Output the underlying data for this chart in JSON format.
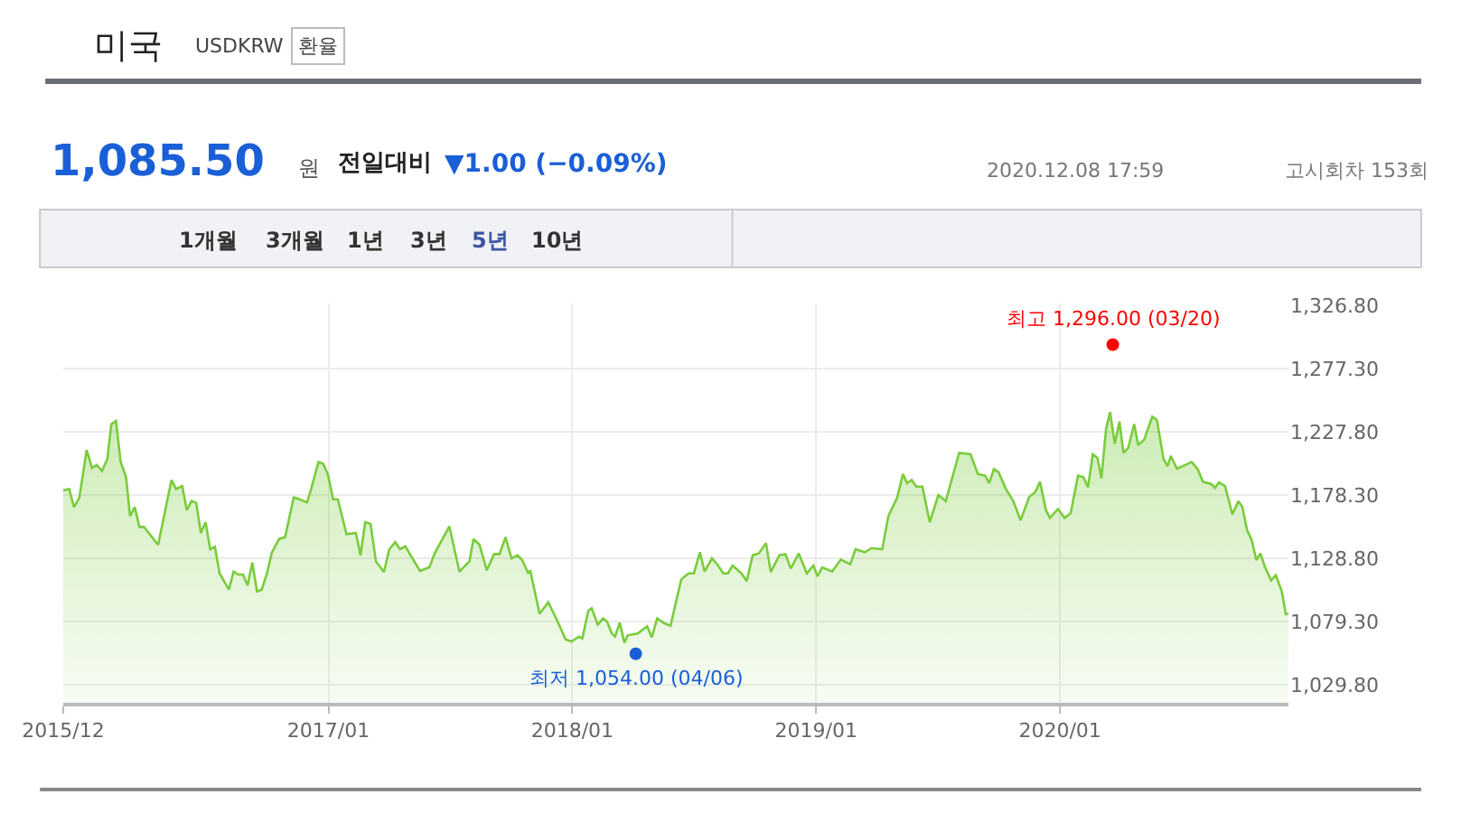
{
  "chart_data": {
    "type": "area",
    "title": "미국",
    "subtitle": "USDKRW",
    "annotations": [
      "환율",
      "1,085.50",
      "원",
      "전일대비",
      "▼1.00 (−0.09%)",
      "2020.12.08 17:59",
      "고시회차 153회",
      "1개월",
      "3개월",
      "1년",
      "3년",
      "5년",
      "10년",
      {
        "text": "최고 1,296.00 (03/20)",
        "x": "2020-03-20",
        "y": 1296
      },
      {
        "text": "최저 1,054.00 (04/06)",
        "x": "2018-04-06",
        "y": 1054
      }
    ],
    "xlim": [
      "2015-12-01",
      "2020-12-08"
    ],
    "xticks": [
      {
        "value": "2015-12-01",
        "label": "2015/12"
      },
      {
        "value": "2017-01-01",
        "label": "2017/01"
      },
      {
        "value": "2018-01-01",
        "label": "2018/01"
      },
      {
        "value": "2019-01-01",
        "label": "2019/01"
      },
      {
        "value": "2020-01-01",
        "label": "2020/01"
      }
    ],
    "ylim": [
      1015.7,
      1328.2
    ],
    "yticks": [
      {
        "value": 1029.8,
        "label": "1,029.80"
      },
      {
        "value": 1079.3,
        "label": "1,079.30"
      },
      {
        "value": 1128.8,
        "label": "1,128.80"
      },
      {
        "value": 1178.3,
        "label": "1,178.30"
      },
      {
        "value": 1227.8,
        "label": "1,227.80"
      },
      {
        "value": 1277.3,
        "label": "1,277.30"
      },
      {
        "value": 1326.8,
        "label": "1,326.80"
      }
    ],
    "grid": true,
    "legend": false,
    "series": [
      {
        "color": "#7acc3c",
        "x": [
          "2015-12-01",
          "2015-12-10",
          "2015-12-17",
          "2015-12-25",
          "2016-01-05",
          "2016-01-13",
          "2016-01-20",
          "2016-01-28",
          "2016-02-05",
          "2016-02-11",
          "2016-02-18",
          "2016-02-25",
          "2016-03-04",
          "2016-03-10",
          "2016-03-17",
          "2016-03-24",
          "2016-03-31",
          "2016-04-21",
          "2016-05-11",
          "2016-05-18",
          "2016-05-27",
          "2016-06-03",
          "2016-06-10",
          "2016-06-17",
          "2016-06-24",
          "2016-07-01",
          "2016-07-08",
          "2016-07-15",
          "2016-07-22",
          "2016-08-05",
          "2016-08-12",
          "2016-08-19",
          "2016-08-26",
          "2016-09-02",
          "2016-09-09",
          "2016-09-16",
          "2016-09-23",
          "2016-10-01",
          "2016-10-08",
          "2016-10-19",
          "2016-10-28",
          "2016-11-10",
          "2016-11-19",
          "2016-11-30",
          "2016-12-06",
          "2016-12-17",
          "2016-12-24",
          "2016-12-31",
          "2017-01-08",
          "2017-01-15",
          "2017-01-28",
          "2017-02-11",
          "2017-02-18",
          "2017-02-25",
          "2017-03-05",
          "2017-03-13",
          "2017-03-25",
          "2017-04-02",
          "2017-04-11",
          "2017-04-18",
          "2017-04-26",
          "2017-05-18",
          "2017-06-01",
          "2017-06-09",
          "2017-07-01",
          "2017-07-16",
          "2017-07-31",
          "2017-08-06",
          "2017-08-15",
          "2017-08-26",
          "2017-09-06",
          "2017-09-14",
          "2017-09-23",
          "2017-10-02",
          "2017-10-11",
          "2017-10-18",
          "2017-10-27",
          "2017-10-30",
          "2017-11-13",
          "2017-11-26",
          "2017-12-10",
          "2017-12-22",
          "2017-12-31",
          "2018-01-11",
          "2018-01-16",
          "2018-01-25",
          "2018-01-30",
          "2018-02-08",
          "2018-02-16",
          "2018-02-22",
          "2018-03-01",
          "2018-03-06",
          "2018-03-13",
          "2018-03-20",
          "2018-03-25",
          "2018-04-09",
          "2018-04-23",
          "2018-04-30",
          "2018-05-08",
          "2018-05-19",
          "2018-05-28",
          "2018-06-13",
          "2018-06-24",
          "2018-07-02",
          "2018-07-11",
          "2018-07-18",
          "2018-07-29",
          "2018-08-06",
          "2018-08-15",
          "2018-08-22",
          "2018-08-29",
          "2018-09-11",
          "2018-09-19",
          "2018-09-28",
          "2018-10-07",
          "2018-10-18",
          "2018-10-25",
          "2018-11-07",
          "2018-11-16",
          "2018-11-24",
          "2018-12-06",
          "2018-12-18",
          "2018-12-28",
          "2019-01-03",
          "2019-01-10",
          "2019-01-25",
          "2019-02-07",
          "2019-02-21",
          "2019-03-01",
          "2019-03-15",
          "2019-03-25",
          "2019-04-10",
          "2019-04-19",
          "2019-05-02",
          "2019-05-11",
          "2019-05-17",
          "2019-05-24",
          "2019-05-31",
          "2019-06-09",
          "2019-06-20",
          "2019-07-03",
          "2019-07-14",
          "2019-08-03",
          "2019-08-20",
          "2019-08-31",
          "2019-09-11",
          "2019-09-17",
          "2019-09-24",
          "2019-10-01",
          "2019-10-12",
          "2019-10-23",
          "2019-11-03",
          "2019-11-16",
          "2019-11-25",
          "2019-12-02",
          "2019-12-11",
          "2019-12-17",
          "2019-12-29",
          "2020-01-08",
          "2020-01-17",
          "2020-01-28",
          "2020-02-05",
          "2020-02-12",
          "2020-02-19",
          "2020-02-26",
          "2020-03-03",
          "2020-03-10",
          "2020-03-16",
          "2020-03-23",
          "2020-03-30",
          "2020-04-05",
          "2020-04-12",
          "2020-04-21",
          "2020-04-27",
          "2020-05-06",
          "2020-05-18",
          "2020-05-25",
          "2020-06-04",
          "2020-06-10",
          "2020-06-15",
          "2020-06-24",
          "2020-07-07",
          "2020-07-16",
          "2020-07-25",
          "2020-08-02",
          "2020-08-15",
          "2020-08-20",
          "2020-08-26",
          "2020-09-04",
          "2020-09-15",
          "2020-09-24",
          "2020-09-30",
          "2020-10-07",
          "2020-10-14",
          "2020-10-21",
          "2020-10-27",
          "2020-11-03",
          "2020-11-12",
          "2020-11-19",
          "2020-11-28",
          "2020-12-04",
          "2020-12-08"
        ],
        "values": [
          1182.1,
          1183.0,
          1168.9,
          1175.9,
          1213.6,
          1199.5,
          1201.9,
          1197.1,
          1206.6,
          1233.9,
          1236.3,
          1204.2,
          1192.4,
          1161.8,
          1168.9,
          1153.3,
          1153.3,
          1139.2,
          1190.1,
          1183.0,
          1185.4,
          1166.5,
          1173.6,
          1172.2,
          1148.6,
          1157.1,
          1135.9,
          1137.8,
          1117.0,
          1104.3,
          1118.4,
          1116.1,
          1116.1,
          1107.6,
          1125.5,
          1102.9,
          1104.3,
          1117.0,
          1133.0,
          1143.9,
          1145.3,
          1176.4,
          1175.0,
          1172.6,
          1183.0,
          1204.2,
          1202.8,
          1194.8,
          1175.0,
          1175.0,
          1147.7,
          1148.6,
          1131.2,
          1157.1,
          1155.7,
          1126.4,
          1118.0,
          1135.9,
          1141.5,
          1135.9,
          1138.2,
          1118.9,
          1121.7,
          1132.6,
          1153.8,
          1118.4,
          1126.4,
          1143.9,
          1139.6,
          1119.4,
          1132.1,
          1132.1,
          1145.3,
          1128.8,
          1131.2,
          1127.4,
          1117.0,
          1119.4,
          1085.4,
          1094.4,
          1079.3,
          1065.2,
          1063.7,
          1067.5,
          1066.1,
          1087.8,
          1089.7,
          1076.9,
          1081.7,
          1079.3,
          1069.9,
          1067.5,
          1078.4,
          1062.8,
          1068.5,
          1069.9,
          1075.5,
          1067.0,
          1081.7,
          1077.9,
          1076.0,
          1112.3,
          1117.0,
          1117.0,
          1133.5,
          1118.4,
          1128.8,
          1124.1,
          1117.0,
          1117.0,
          1123.1,
          1117.0,
          1110.9,
          1131.2,
          1132.6,
          1140.6,
          1118.0,
          1131.2,
          1132.1,
          1120.8,
          1132.6,
          1117.0,
          1123.1,
          1114.7,
          1121.7,
          1118.4,
          1127.9,
          1124.1,
          1135.9,
          1133.5,
          1136.8,
          1135.9,
          1161.8,
          1175.9,
          1194.8,
          1187.7,
          1190.1,
          1184.9,
          1184.9,
          1157.1,
          1178.3,
          1173.6,
          1211.3,
          1210.3,
          1194.8,
          1193.4,
          1187.7,
          1198.6,
          1196.2,
          1183.0,
          1173.6,
          1158.5,
          1176.9,
          1180.6,
          1188.7,
          1166.5,
          1160.4,
          1167.4,
          1160.4,
          1164.1,
          1193.4,
          1192.4,
          1184.4,
          1210.3,
          1207.5,
          1191.5,
          1230.1,
          1243.3,
          1218.4,
          1235.8,
          1211.3,
          1215.1,
          1233.9,
          1217.4,
          1221.7,
          1239.6,
          1237.2,
          1206.6,
          1200.9,
          1208.9,
          1199.0,
          1201.9,
          1204.2,
          1198.6,
          1188.7,
          1186.8,
          1183.9,
          1188.2,
          1185.4,
          1163.2,
          1173.6,
          1168.9,
          1150.9,
          1142.9,
          1127.4,
          1132.6,
          1121.7,
          1111.4,
          1115.6,
          1102.9,
          1085.0,
          1085.5
        ]
      },
      {
        "type": "scatter",
        "x": [
          "2020-03-20",
          "2018-04-06"
        ],
        "values": [
          1296,
          1054
        ],
        "colors": [
          "#ff0000",
          "#1a5fd6"
        ]
      }
    ]
  }
}
